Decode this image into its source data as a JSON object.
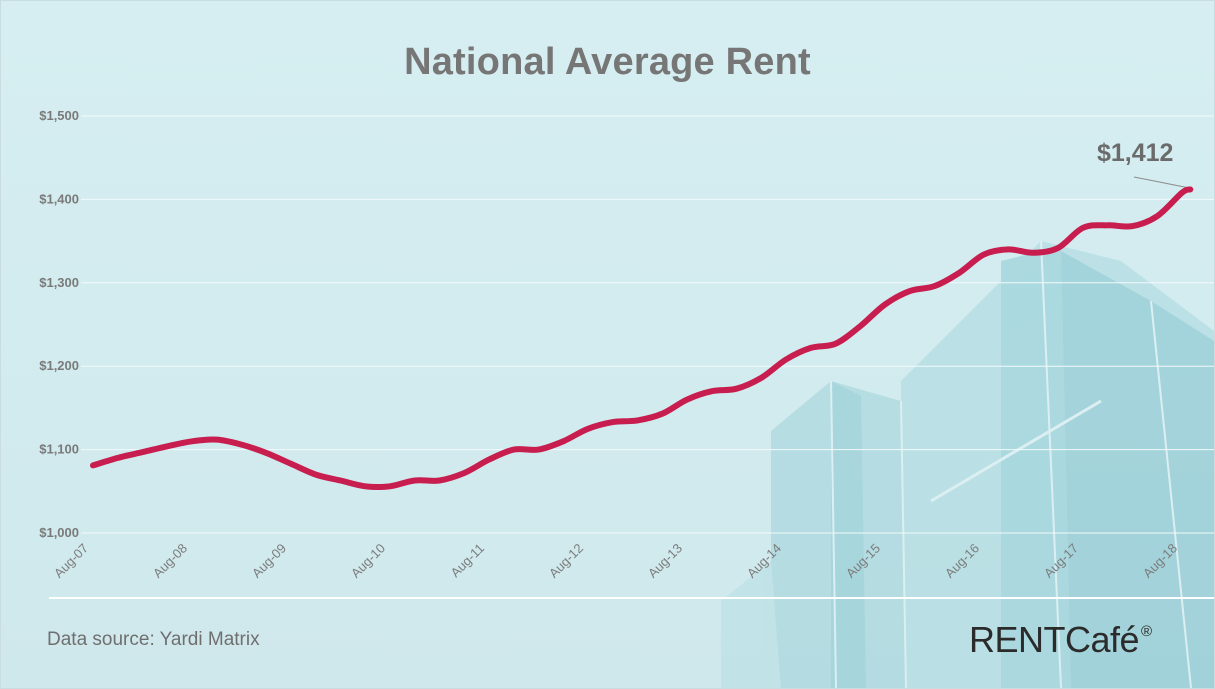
{
  "chart_data": {
    "type": "line",
    "title": "National Average Rent",
    "xlabel": "",
    "ylabel": "",
    "ylim": [
      1000,
      1500
    ],
    "y_ticks": [
      1000,
      1100,
      1200,
      1300,
      1400,
      1500
    ],
    "y_tick_labels": [
      "$1,000",
      "$1,100",
      "$1,200",
      "$1,300",
      "$1,400",
      "$1,500"
    ],
    "x_tick_labels": [
      "Aug-07",
      "Aug-08",
      "Aug-09",
      "Aug-10",
      "Aug-11",
      "Aug-12",
      "Aug-13",
      "Aug-14",
      "Aug-15",
      "Aug-16",
      "Aug-17",
      "Aug-18"
    ],
    "grid": "horizontal",
    "line_color": "#c81e4f",
    "series": [
      {
        "points": [
          [
            "Aug-07",
            1081
          ],
          [
            "Nov-07",
            1090
          ],
          [
            "Feb-08",
            1097
          ],
          [
            "May-08",
            1104
          ],
          [
            "Aug-08",
            1110
          ],
          [
            "Nov-08",
            1112
          ],
          [
            "Feb-09",
            1106
          ],
          [
            "May-09",
            1096
          ],
          [
            "Aug-09",
            1083
          ],
          [
            "Nov-09",
            1070
          ],
          [
            "Feb-10",
            1063
          ],
          [
            "May-10",
            1056
          ],
          [
            "Aug-10",
            1056
          ],
          [
            "Nov-10",
            1063
          ],
          [
            "Feb-11",
            1063
          ],
          [
            "May-11",
            1072
          ],
          [
            "Aug-11",
            1088
          ],
          [
            "Nov-11",
            1100
          ],
          [
            "Feb-12",
            1100
          ],
          [
            "May-12",
            1110
          ],
          [
            "Aug-12",
            1125
          ],
          [
            "Nov-12",
            1133
          ],
          [
            "Feb-13",
            1135
          ],
          [
            "May-13",
            1143
          ],
          [
            "Aug-13",
            1160
          ],
          [
            "Nov-13",
            1170
          ],
          [
            "Feb-14",
            1173
          ],
          [
            "May-14",
            1186
          ],
          [
            "Aug-14",
            1208
          ],
          [
            "Nov-14",
            1222
          ],
          [
            "Feb-15",
            1227
          ],
          [
            "May-15",
            1248
          ],
          [
            "Aug-15",
            1274
          ],
          [
            "Nov-15",
            1290
          ],
          [
            "Feb-16",
            1296
          ],
          [
            "May-16",
            1312
          ],
          [
            "Aug-16",
            1334
          ],
          [
            "Nov-16",
            1340
          ],
          [
            "Feb-17",
            1336
          ],
          [
            "May-17",
            1342
          ],
          [
            "Aug-17",
            1366
          ],
          [
            "Nov-17",
            1369
          ],
          [
            "Feb-18",
            1368
          ],
          [
            "May-18",
            1380
          ],
          [
            "Aug-18",
            1408
          ],
          [
            "Sep-18",
            1412
          ]
        ]
      }
    ],
    "annotation": {
      "label": "$1,412",
      "value": 1412,
      "date": "Sep-18"
    },
    "source_note": "Data source:  Yardi Matrix",
    "logo": {
      "main": "RENTCafé",
      "mark": "®"
    }
  }
}
